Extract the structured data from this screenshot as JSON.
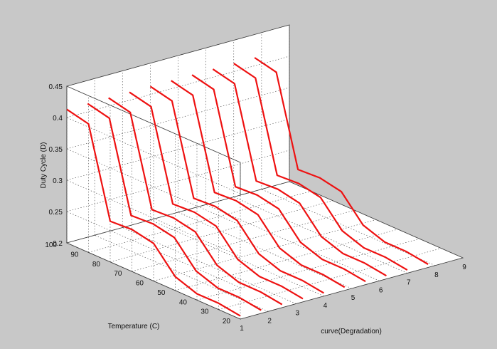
{
  "chart_data": {
    "type": "line",
    "subtype": "3d-waterfall",
    "zlabel": "Duty Cycle (D)",
    "ylabel": "Temperature (C)",
    "xlabel": "curve(Degradation)",
    "x_ticks": [
      "1",
      "2",
      "3",
      "4",
      "5",
      "6",
      "7",
      "8",
      "9"
    ],
    "y_ticks": [
      "20",
      "30",
      "40",
      "50",
      "60",
      "70",
      "80",
      "90",
      "100"
    ],
    "z_ticks": [
      "0.2",
      "0.25",
      "0.3",
      "0.35",
      "0.4",
      "0.45"
    ],
    "xlim": [
      1,
      9
    ],
    "ylim": [
      20,
      100
    ],
    "zlim": [
      0.2,
      0.45
    ],
    "grid": true,
    "line_color": "#ee1111",
    "temperature": [
      20,
      30,
      40,
      50,
      60,
      70,
      80,
      90,
      100
    ],
    "series": [
      {
        "x": 1.0,
        "values": [
          0.205,
          0.21,
          0.21,
          0.222,
          0.26,
          0.267,
          0.265,
          0.405,
          0.413
        ]
      },
      {
        "x": 1.75,
        "values": [
          0.205,
          0.21,
          0.21,
          0.222,
          0.26,
          0.267,
          0.265,
          0.405,
          0.413
        ]
      },
      {
        "x": 2.5,
        "values": [
          0.205,
          0.21,
          0.21,
          0.222,
          0.26,
          0.267,
          0.265,
          0.405,
          0.413
        ]
      },
      {
        "x": 3.25,
        "values": [
          0.205,
          0.21,
          0.21,
          0.222,
          0.26,
          0.267,
          0.265,
          0.405,
          0.413
        ]
      },
      {
        "x": 4.0,
        "values": [
          0.205,
          0.21,
          0.21,
          0.222,
          0.26,
          0.267,
          0.265,
          0.405,
          0.413
        ]
      },
      {
        "x": 4.75,
        "values": [
          0.205,
          0.21,
          0.21,
          0.222,
          0.26,
          0.267,
          0.265,
          0.405,
          0.413
        ]
      },
      {
        "x": 5.5,
        "values": [
          0.205,
          0.21,
          0.21,
          0.222,
          0.26,
          0.267,
          0.265,
          0.405,
          0.413
        ]
      },
      {
        "x": 6.25,
        "values": [
          0.205,
          0.21,
          0.21,
          0.222,
          0.26,
          0.267,
          0.265,
          0.405,
          0.413
        ]
      },
      {
        "x": 7.0,
        "values": [
          0.205,
          0.21,
          0.21,
          0.222,
          0.26,
          0.267,
          0.265,
          0.405,
          0.413
        ]
      },
      {
        "x": 7.75,
        "values": [
          0.205,
          0.21,
          0.21,
          0.222,
          0.26,
          0.267,
          0.265,
          0.405,
          0.413
        ]
      }
    ]
  }
}
